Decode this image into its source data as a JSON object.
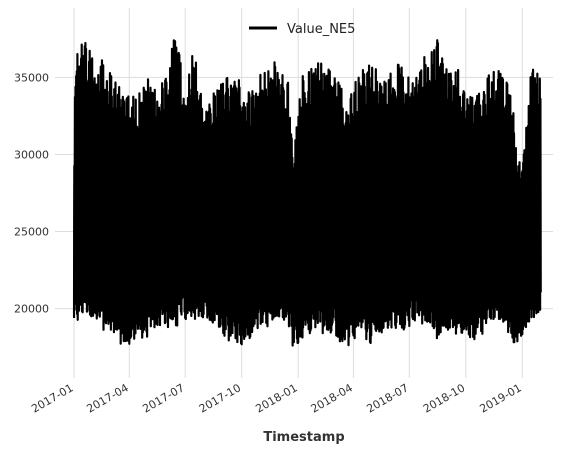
{
  "chart_data": {
    "type": "line",
    "xlabel": "Timestamp",
    "ylabel": "",
    "grid": true,
    "legend_placement": "top-center",
    "x_ticks": [
      "2017-01",
      "2017-04",
      "2017-07",
      "2017-10",
      "2018-01",
      "2018-04",
      "2018-07",
      "2018-10",
      "2019-01"
    ],
    "y_ticks": [
      20000,
      25000,
      30000,
      35000
    ],
    "xlim": [
      "2016-12-01",
      "2019-02-20"
    ],
    "ylim": [
      15500,
      39500
    ],
    "series": [
      {
        "name": "Value_NE5",
        "color": "#000000",
        "x_range": [
          "2017-01-01",
          "2019-01-31"
        ],
        "y_range": [
          16600,
          38900
        ],
        "daily_high_envelope": [
          [
            "2017-01-01",
            35800
          ],
          [
            "2017-01-15",
            38000
          ],
          [
            "2017-02-01",
            36500
          ],
          [
            "2017-02-15",
            36200
          ],
          [
            "2017-03-01",
            35500
          ],
          [
            "2017-03-15",
            35000
          ],
          [
            "2017-04-01",
            34500
          ],
          [
            "2017-04-15",
            34000
          ],
          [
            "2017-05-01",
            35200
          ],
          [
            "2017-05-15",
            34000
          ],
          [
            "2017-06-01",
            35500
          ],
          [
            "2017-06-15",
            38500
          ],
          [
            "2017-06-25",
            36000
          ],
          [
            "2017-07-01",
            34000
          ],
          [
            "2017-07-15",
            37000
          ],
          [
            "2017-08-01",
            32500
          ],
          [
            "2017-08-15",
            34000
          ],
          [
            "2017-09-01",
            35000
          ],
          [
            "2017-09-15",
            35000
          ],
          [
            "2017-10-01",
            35000
          ],
          [
            "2017-10-15",
            34000
          ],
          [
            "2017-11-01",
            35500
          ],
          [
            "2017-11-15",
            36000
          ],
          [
            "2017-12-01",
            36000
          ],
          [
            "2017-12-15",
            35000
          ],
          [
            "2017-12-24",
            30500
          ],
          [
            "2018-01-08",
            35500
          ],
          [
            "2018-01-20",
            35500
          ],
          [
            "2018-02-01",
            36500
          ],
          [
            "2018-02-15",
            36000
          ],
          [
            "2018-03-01",
            35500
          ],
          [
            "2018-03-15",
            34000
          ],
          [
            "2018-04-01",
            34500
          ],
          [
            "2018-04-15",
            35500
          ],
          [
            "2018-05-01",
            36000
          ],
          [
            "2018-05-15",
            35000
          ],
          [
            "2018-06-01",
            35500
          ],
          [
            "2018-06-15",
            36000
          ],
          [
            "2018-07-01",
            35000
          ],
          [
            "2018-07-15",
            36200
          ],
          [
            "2018-08-01",
            36800
          ],
          [
            "2018-08-15",
            37500
          ],
          [
            "2018-09-01",
            35500
          ],
          [
            "2018-09-15",
            36000
          ],
          [
            "2018-10-01",
            34000
          ],
          [
            "2018-10-15",
            34000
          ],
          [
            "2018-11-01",
            34500
          ],
          [
            "2018-11-15",
            36000
          ],
          [
            "2018-12-01",
            35500
          ],
          [
            "2018-12-15",
            34500
          ],
          [
            "2018-12-24",
            29000
          ],
          [
            "2019-01-05",
            31000
          ],
          [
            "2019-01-15",
            35800
          ],
          [
            "2019-01-31",
            35000
          ]
        ],
        "daily_low_envelope": [
          [
            "2017-01-01",
            18000
          ],
          [
            "2017-01-15",
            19000
          ],
          [
            "2017-02-01",
            18500
          ],
          [
            "2017-02-15",
            18000
          ],
          [
            "2017-03-01",
            17500
          ],
          [
            "2017-03-15",
            17000
          ],
          [
            "2017-04-01",
            17000
          ],
          [
            "2017-04-15",
            17500
          ],
          [
            "2017-05-01",
            17500
          ],
          [
            "2017-05-15",
            18000
          ],
          [
            "2017-06-01",
            18000
          ],
          [
            "2017-06-15",
            17800
          ],
          [
            "2017-07-01",
            18500
          ],
          [
            "2017-07-15",
            18000
          ],
          [
            "2017-08-01",
            19000
          ],
          [
            "2017-08-15",
            18000
          ],
          [
            "2017-09-01",
            17500
          ],
          [
            "2017-09-15",
            17000
          ],
          [
            "2017-10-01",
            17000
          ],
          [
            "2017-10-15",
            17500
          ],
          [
            "2017-11-01",
            18000
          ],
          [
            "2017-11-15",
            18000
          ],
          [
            "2017-12-01",
            18500
          ],
          [
            "2017-12-15",
            18000
          ],
          [
            "2017-12-24",
            16800
          ],
          [
            "2018-01-08",
            17000
          ],
          [
            "2018-01-20",
            17500
          ],
          [
            "2018-02-01",
            18000
          ],
          [
            "2018-02-15",
            17500
          ],
          [
            "2018-03-01",
            17500
          ],
          [
            "2018-03-15",
            17000
          ],
          [
            "2018-04-01",
            17000
          ],
          [
            "2018-04-15",
            17500
          ],
          [
            "2018-05-01",
            17000
          ],
          [
            "2018-05-15",
            17500
          ],
          [
            "2018-06-01",
            18000
          ],
          [
            "2018-06-15",
            17500
          ],
          [
            "2018-07-01",
            18000
          ],
          [
            "2018-07-15",
            18500
          ],
          [
            "2018-08-01",
            18000
          ],
          [
            "2018-08-15",
            17000
          ],
          [
            "2018-09-01",
            18000
          ],
          [
            "2018-09-15",
            17500
          ],
          [
            "2018-10-01",
            17500
          ],
          [
            "2018-10-15",
            17000
          ],
          [
            "2018-11-01",
            18000
          ],
          [
            "2018-11-15",
            18000
          ],
          [
            "2018-12-01",
            18500
          ],
          [
            "2018-12-15",
            17000
          ],
          [
            "2018-12-24",
            17000
          ],
          [
            "2019-01-05",
            18000
          ],
          [
            "2019-01-15",
            18500
          ],
          [
            "2019-01-31",
            19000
          ]
        ]
      }
    ]
  }
}
